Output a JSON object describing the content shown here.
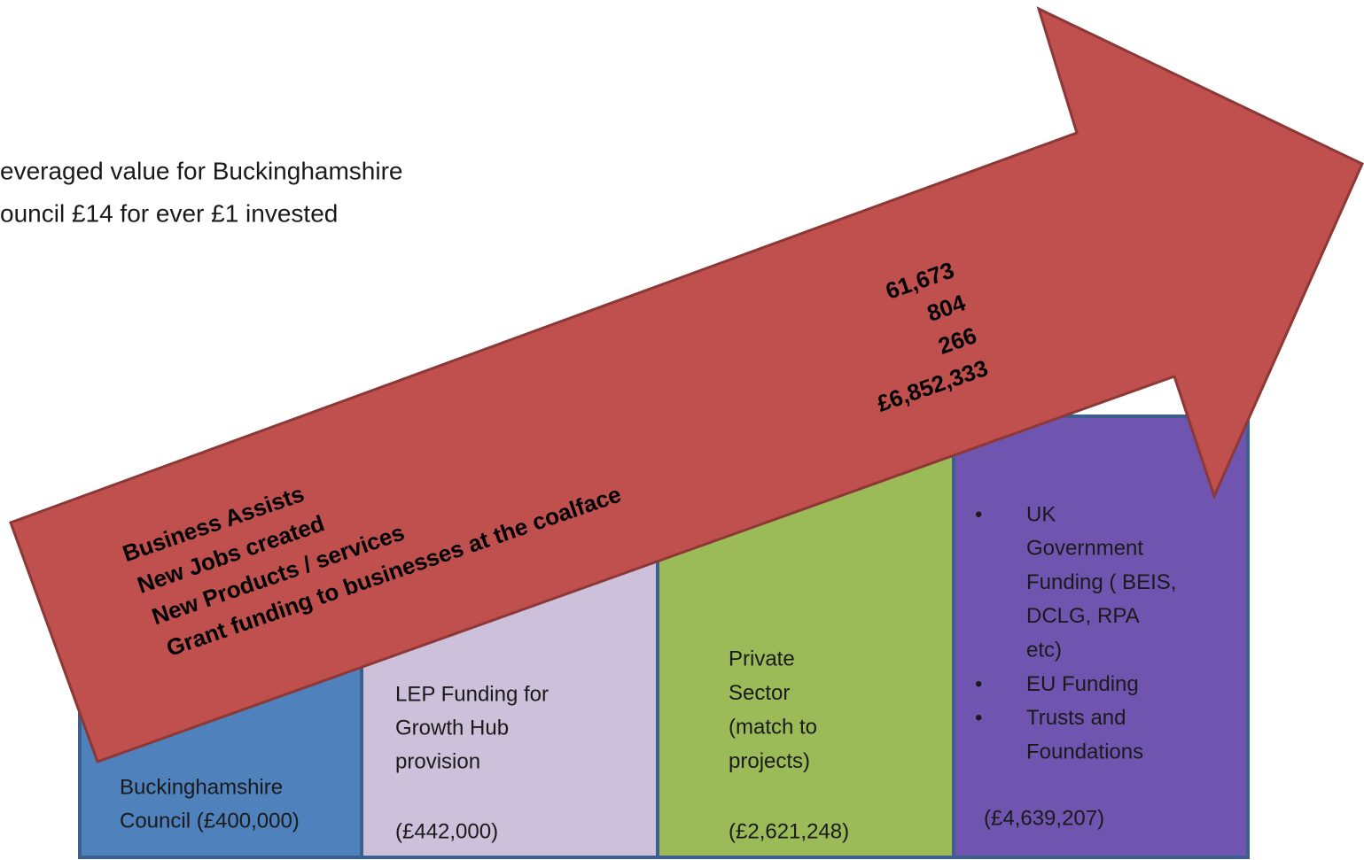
{
  "headline": [
    "everaged value for Buckinghamshire",
    "ouncil £14 for ever £1 invested"
  ],
  "arrow": {
    "labels": [
      "Business Assists",
      "New Jobs created",
      "New Products / services",
      "Grant funding to businesses at the coalface"
    ],
    "figures": [
      "61,673",
      "804",
      "266",
      "£6,852,333"
    ]
  },
  "boxes": [
    {
      "lines": [
        "Buckinghamshire",
        "Council (£400,000)"
      ]
    },
    {
      "lines": [
        "LEP Funding for",
        "Growth Hub",
        "provision"
      ],
      "amount": "(£442,000)"
    },
    {
      "lines": [
        "Private",
        "Sector",
        "(match to",
        "projects)"
      ],
      "amount": "(£2,621,248)"
    },
    {
      "bullets": [
        [
          "UK",
          "Government",
          "Funding ( BEIS,",
          "DCLG, RPA",
          "etc)"
        ],
        [
          "EU Funding"
        ],
        [
          "Trusts and",
          "Foundations"
        ]
      ],
      "amount": "(£4,639,207)"
    }
  ]
}
